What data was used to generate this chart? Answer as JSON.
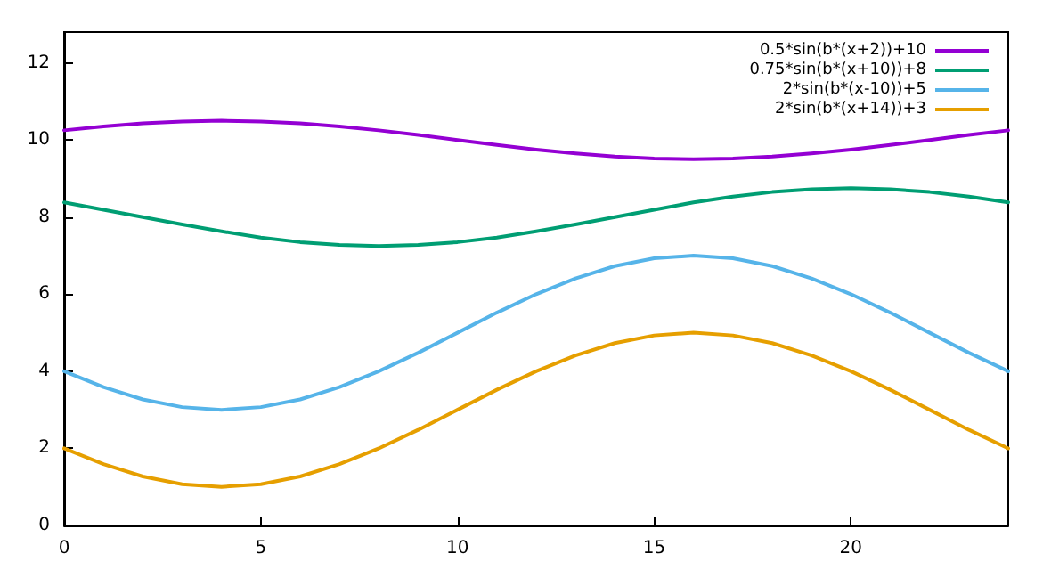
{
  "chart_data": {
    "type": "line",
    "x": [
      0,
      1,
      2,
      3,
      4,
      5,
      6,
      7,
      8,
      9,
      10,
      11,
      12,
      13,
      14,
      15,
      16,
      17,
      18,
      19,
      20,
      21,
      22,
      23,
      24
    ],
    "series": [
      {
        "name": "0.5*sin(b*(x+2))+10",
        "color": "#9400d3",
        "values": [
          10.25,
          10.35,
          10.43,
          10.48,
          10.5,
          10.48,
          10.43,
          10.35,
          10.25,
          10.13,
          10,
          9.87,
          9.75,
          9.65,
          9.57,
          9.52,
          9.5,
          9.52,
          9.57,
          9.65,
          9.75,
          9.87,
          10,
          10.13,
          10.25
        ]
      },
      {
        "name": "0.75*sin(b*(x+10))+8",
        "color": "#009e73",
        "values": [
          8.38,
          8.19,
          8,
          7.81,
          7.63,
          7.47,
          7.35,
          7.28,
          7.25,
          7.28,
          7.35,
          7.47,
          7.63,
          7.81,
          8,
          8.19,
          8.38,
          8.53,
          8.65,
          8.72,
          8.75,
          8.72,
          8.65,
          8.53,
          8.38
        ]
      },
      {
        "name": "2*sin(b*(x-10))+5",
        "color": "#56b4e9",
        "values": [
          4,
          3.59,
          3.27,
          3.07,
          3,
          3.07,
          3.27,
          3.59,
          4,
          4.48,
          5,
          5.52,
          6,
          6.41,
          6.73,
          6.93,
          7,
          6.93,
          6.73,
          6.41,
          6,
          5.52,
          5,
          4.48,
          4
        ]
      },
      {
        "name": "2*sin(b*(x+14))+3",
        "color": "#e69f00",
        "values": [
          2,
          1.59,
          1.27,
          1.07,
          1,
          1.07,
          1.27,
          1.59,
          2,
          2.48,
          3,
          3.52,
          4,
          4.41,
          4.73,
          4.93,
          5,
          4.93,
          4.73,
          4.41,
          4,
          3.52,
          3,
          2.48,
          2
        ]
      }
    ],
    "xlim": [
      0,
      24
    ],
    "xticks": [
      0,
      5,
      10,
      15,
      20
    ],
    "ylim": [
      0,
      12.8
    ],
    "yticks": [
      0,
      2,
      4,
      6,
      8,
      10,
      12
    ],
    "legend": "top right",
    "grid": false,
    "marker": "none",
    "line_style": "solid"
  }
}
